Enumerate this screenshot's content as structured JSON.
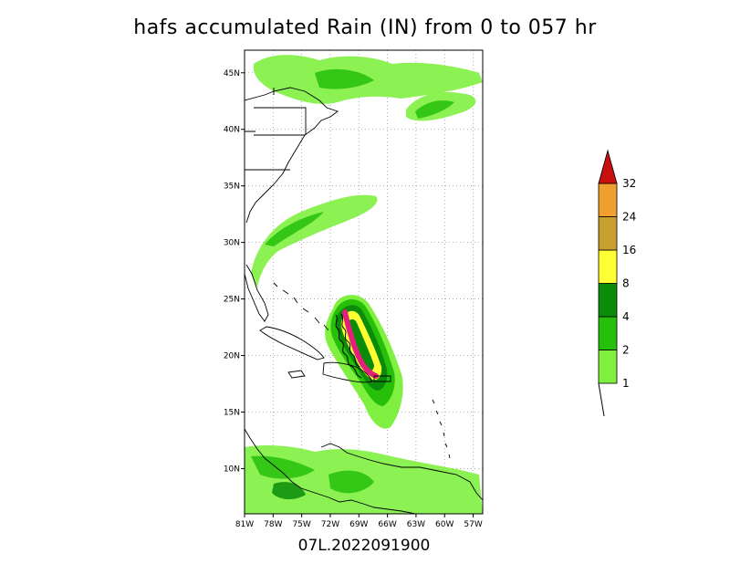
{
  "title": "hafs accumulated Rain (IN) from 0 to 057 hr",
  "footer_label": "07L.2022091900",
  "map": {
    "lon_min": -81,
    "lon_max": -56,
    "lat_min": 6,
    "lat_max": 47,
    "lon_ticks": [
      {
        "value": -81,
        "label": "81W"
      },
      {
        "value": -78,
        "label": "78W"
      },
      {
        "value": -75,
        "label": "75W"
      },
      {
        "value": -72,
        "label": "72W"
      },
      {
        "value": -69,
        "label": "69W"
      },
      {
        "value": -66,
        "label": "66W"
      },
      {
        "value": -63,
        "label": "63W"
      },
      {
        "value": -60,
        "label": "60W"
      },
      {
        "value": -57,
        "label": "57W"
      }
    ],
    "lat_ticks": [
      {
        "value": 10,
        "label": "10N"
      },
      {
        "value": 15,
        "label": "15N"
      },
      {
        "value": 20,
        "label": "20N"
      },
      {
        "value": 25,
        "label": "25N"
      },
      {
        "value": 30,
        "label": "30N"
      },
      {
        "value": 35,
        "label": "35N"
      },
      {
        "value": 40,
        "label": "40N"
      },
      {
        "value": 45,
        "label": "45N"
      }
    ],
    "grid": "dotted"
  },
  "legend": {
    "levels": [
      {
        "label": "1",
        "color": "#80f040"
      },
      {
        "label": "2",
        "color": "#26c00a"
      },
      {
        "label": "4",
        "color": "#0a8c0a"
      },
      {
        "label": "8",
        "color": "#ffff33"
      },
      {
        "label": "16",
        "color": "#c8a030"
      },
      {
        "label": "24",
        "color": "#f0a030"
      },
      {
        "label": "32",
        "color": "#c81010"
      }
    ]
  },
  "colors": {
    "track": "#e0207a",
    "coast": "#000000"
  }
}
